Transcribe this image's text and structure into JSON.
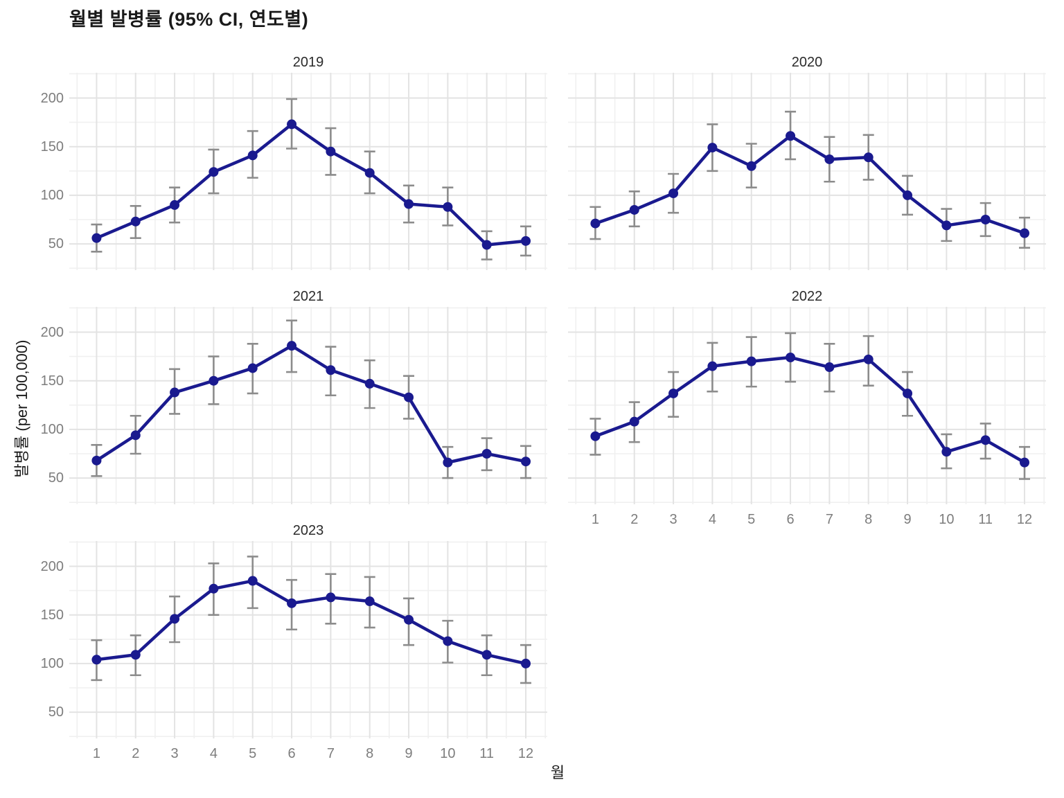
{
  "title": "월별 발병률 (95% CI, 연도별)",
  "chart_data": {
    "type": "line",
    "title": "월별 발병률 (95% CI, 연도별)",
    "xlabel": "월",
    "ylabel": "발병률 (per 100,000)",
    "x": [
      1,
      2,
      3,
      4,
      5,
      6,
      7,
      8,
      9,
      10,
      11,
      12
    ],
    "x_tick_labels": [
      "1",
      "2",
      "3",
      "4",
      "5",
      "6",
      "7",
      "8",
      "9",
      "10",
      "11",
      "12"
    ],
    "y_ticks": [
      50,
      100,
      150,
      200
    ],
    "y_minor_ticks": [
      25,
      75,
      125,
      175,
      225
    ],
    "ylim": [
      23,
      226
    ],
    "xlim": [
      0.3,
      12.55
    ],
    "grid": "major+minor",
    "legend": "none",
    "error_bars": "95% CI",
    "facets": [
      {
        "year": "2019",
        "values": [
          56,
          73,
          90,
          124,
          141,
          173,
          145,
          123,
          91,
          88,
          49,
          53
        ],
        "ci_lower": [
          42,
          56,
          72,
          102,
          118,
          148,
          121,
          102,
          72,
          69,
          34,
          38
        ],
        "ci_upper": [
          70,
          89,
          108,
          147,
          166,
          199,
          169,
          145,
          110,
          108,
          63,
          68
        ]
      },
      {
        "year": "2020",
        "values": [
          71,
          85,
          102,
          149,
          130,
          161,
          137,
          139,
          100,
          69,
          75,
          61
        ],
        "ci_lower": [
          55,
          68,
          82,
          125,
          108,
          137,
          114,
          116,
          80,
          53,
          58,
          46
        ],
        "ci_upper": [
          88,
          104,
          122,
          173,
          153,
          186,
          160,
          162,
          120,
          86,
          92,
          77
        ]
      },
      {
        "year": "2021",
        "values": [
          68,
          94,
          138,
          150,
          163,
          186,
          161,
          147,
          133,
          66,
          75,
          67
        ],
        "ci_lower": [
          52,
          75,
          116,
          126,
          137,
          159,
          135,
          122,
          111,
          50,
          58,
          50
        ],
        "ci_upper": [
          84,
          114,
          162,
          175,
          188,
          212,
          185,
          171,
          155,
          82,
          91,
          83
        ]
      },
      {
        "year": "2022",
        "values": [
          93,
          108,
          137,
          165,
          170,
          174,
          164,
          172,
          137,
          77,
          89,
          66
        ],
        "ci_lower": [
          74,
          87,
          113,
          139,
          144,
          149,
          139,
          145,
          114,
          60,
          70,
          49
        ],
        "ci_upper": [
          111,
          128,
          159,
          189,
          195,
          199,
          188,
          196,
          159,
          95,
          106,
          82
        ]
      },
      {
        "year": "2023",
        "values": [
          104,
          109,
          146,
          177,
          185,
          162,
          168,
          164,
          145,
          123,
          109,
          100
        ],
        "ci_lower": [
          83,
          88,
          122,
          150,
          157,
          135,
          141,
          137,
          119,
          101,
          88,
          80
        ],
        "ci_upper": [
          124,
          129,
          169,
          203,
          210,
          186,
          192,
          189,
          167,
          144,
          129,
          119
        ]
      }
    ],
    "colors": {
      "line": "#1A1A8F",
      "point": "#1A1A8F",
      "error_bar": "#8C8C8C",
      "grid_major": "#E3E3E3",
      "grid_minor": "#F0F0F0",
      "tick_text": "#7D7D7D",
      "text": "#1A1A1A"
    }
  }
}
